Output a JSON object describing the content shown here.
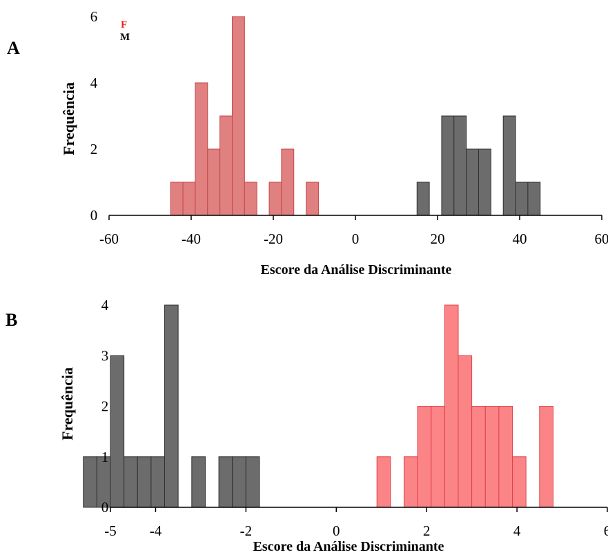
{
  "panels": {
    "a": {
      "label": "A"
    },
    "b": {
      "label": "B"
    }
  },
  "legend": {
    "f": {
      "label": "F",
      "color": "#e8211f"
    },
    "m": {
      "label": "M",
      "color": "#000000"
    }
  },
  "colors": {
    "f_fill": "#e08080",
    "f_stroke": "#c44848",
    "m_fill": "#6c6c6c",
    "m_stroke": "#303030",
    "b_f_fill": "#fb8486",
    "b_f_stroke": "#e0404a"
  },
  "chart_data": [
    {
      "type": "bar",
      "panel": "A",
      "xlabel": "Escore da Análise Discriminante",
      "ylabel": "Frequência",
      "xlim": [
        -60,
        60
      ],
      "ylim": [
        0,
        6
      ],
      "xticks": [
        "-60",
        "-40",
        "-20",
        "0",
        "20",
        "40",
        "60"
      ],
      "xtick_values": [
        -60,
        -40,
        -20,
        0,
        20,
        40,
        60
      ],
      "yticks": [
        "0",
        "2",
        "4",
        "6"
      ],
      "ytick_values": [
        0,
        2,
        4,
        6
      ],
      "bin_width": 3,
      "series": [
        {
          "name": "F",
          "bins": [
            {
              "x0": -45,
              "count": 1
            },
            {
              "x0": -42,
              "count": 1
            },
            {
              "x0": -39,
              "count": 4
            },
            {
              "x0": -36,
              "count": 2
            },
            {
              "x0": -33,
              "count": 3
            },
            {
              "x0": -30,
              "count": 6
            },
            {
              "x0": -27,
              "count": 1
            },
            {
              "x0": -21,
              "count": 1
            },
            {
              "x0": -18,
              "count": 2
            },
            {
              "x0": -12,
              "count": 1
            }
          ]
        },
        {
          "name": "M",
          "bins": [
            {
              "x0": 15,
              "count": 1
            },
            {
              "x0": 21,
              "count": 3
            },
            {
              "x0": 24,
              "count": 3
            },
            {
              "x0": 27,
              "count": 2
            },
            {
              "x0": 30,
              "count": 2
            },
            {
              "x0": 36,
              "count": 3
            },
            {
              "x0": 39,
              "count": 1
            },
            {
              "x0": 42,
              "count": 1
            }
          ]
        }
      ]
    },
    {
      "type": "bar",
      "panel": "B",
      "xlabel": "Escore da Análise Discriminante",
      "ylabel": "Frequência",
      "xlim": [
        -5,
        6
      ],
      "ylim": [
        0,
        4
      ],
      "xticks": [
        "-5",
        "-4",
        "-2",
        "0",
        "2",
        "4",
        "6"
      ],
      "xtick_values": [
        -5,
        -4,
        -2,
        0,
        2,
        4,
        6
      ],
      "yticks": [
        "0",
        "1",
        "2",
        "3",
        "4"
      ],
      "ytick_values": [
        0,
        1,
        2,
        3,
        4
      ],
      "bin_width": 0.3,
      "series": [
        {
          "name": "M",
          "bins": [
            {
              "x0": -5.6,
              "count": 1
            },
            {
              "x0": -5.3,
              "count": 1
            },
            {
              "x0": -5.0,
              "count": 3
            },
            {
              "x0": -4.7,
              "count": 1
            },
            {
              "x0": -4.4,
              "count": 1
            },
            {
              "x0": -4.1,
              "count": 1
            },
            {
              "x0": -3.8,
              "count": 4
            },
            {
              "x0": -3.2,
              "count": 1
            },
            {
              "x0": -2.6,
              "count": 1
            },
            {
              "x0": -2.3,
              "count": 1
            },
            {
              "x0": -2.0,
              "count": 1
            }
          ]
        },
        {
          "name": "F",
          "bins": [
            {
              "x0": 0.9,
              "count": 1
            },
            {
              "x0": 1.5,
              "count": 1
            },
            {
              "x0": 1.8,
              "count": 2
            },
            {
              "x0": 2.1,
              "count": 2
            },
            {
              "x0": 2.4,
              "count": 4
            },
            {
              "x0": 2.7,
              "count": 3
            },
            {
              "x0": 3.0,
              "count": 2
            },
            {
              "x0": 3.3,
              "count": 2
            },
            {
              "x0": 3.6,
              "count": 2
            },
            {
              "x0": 3.9,
              "count": 1
            },
            {
              "x0": 4.5,
              "count": 2
            }
          ]
        }
      ]
    }
  ]
}
